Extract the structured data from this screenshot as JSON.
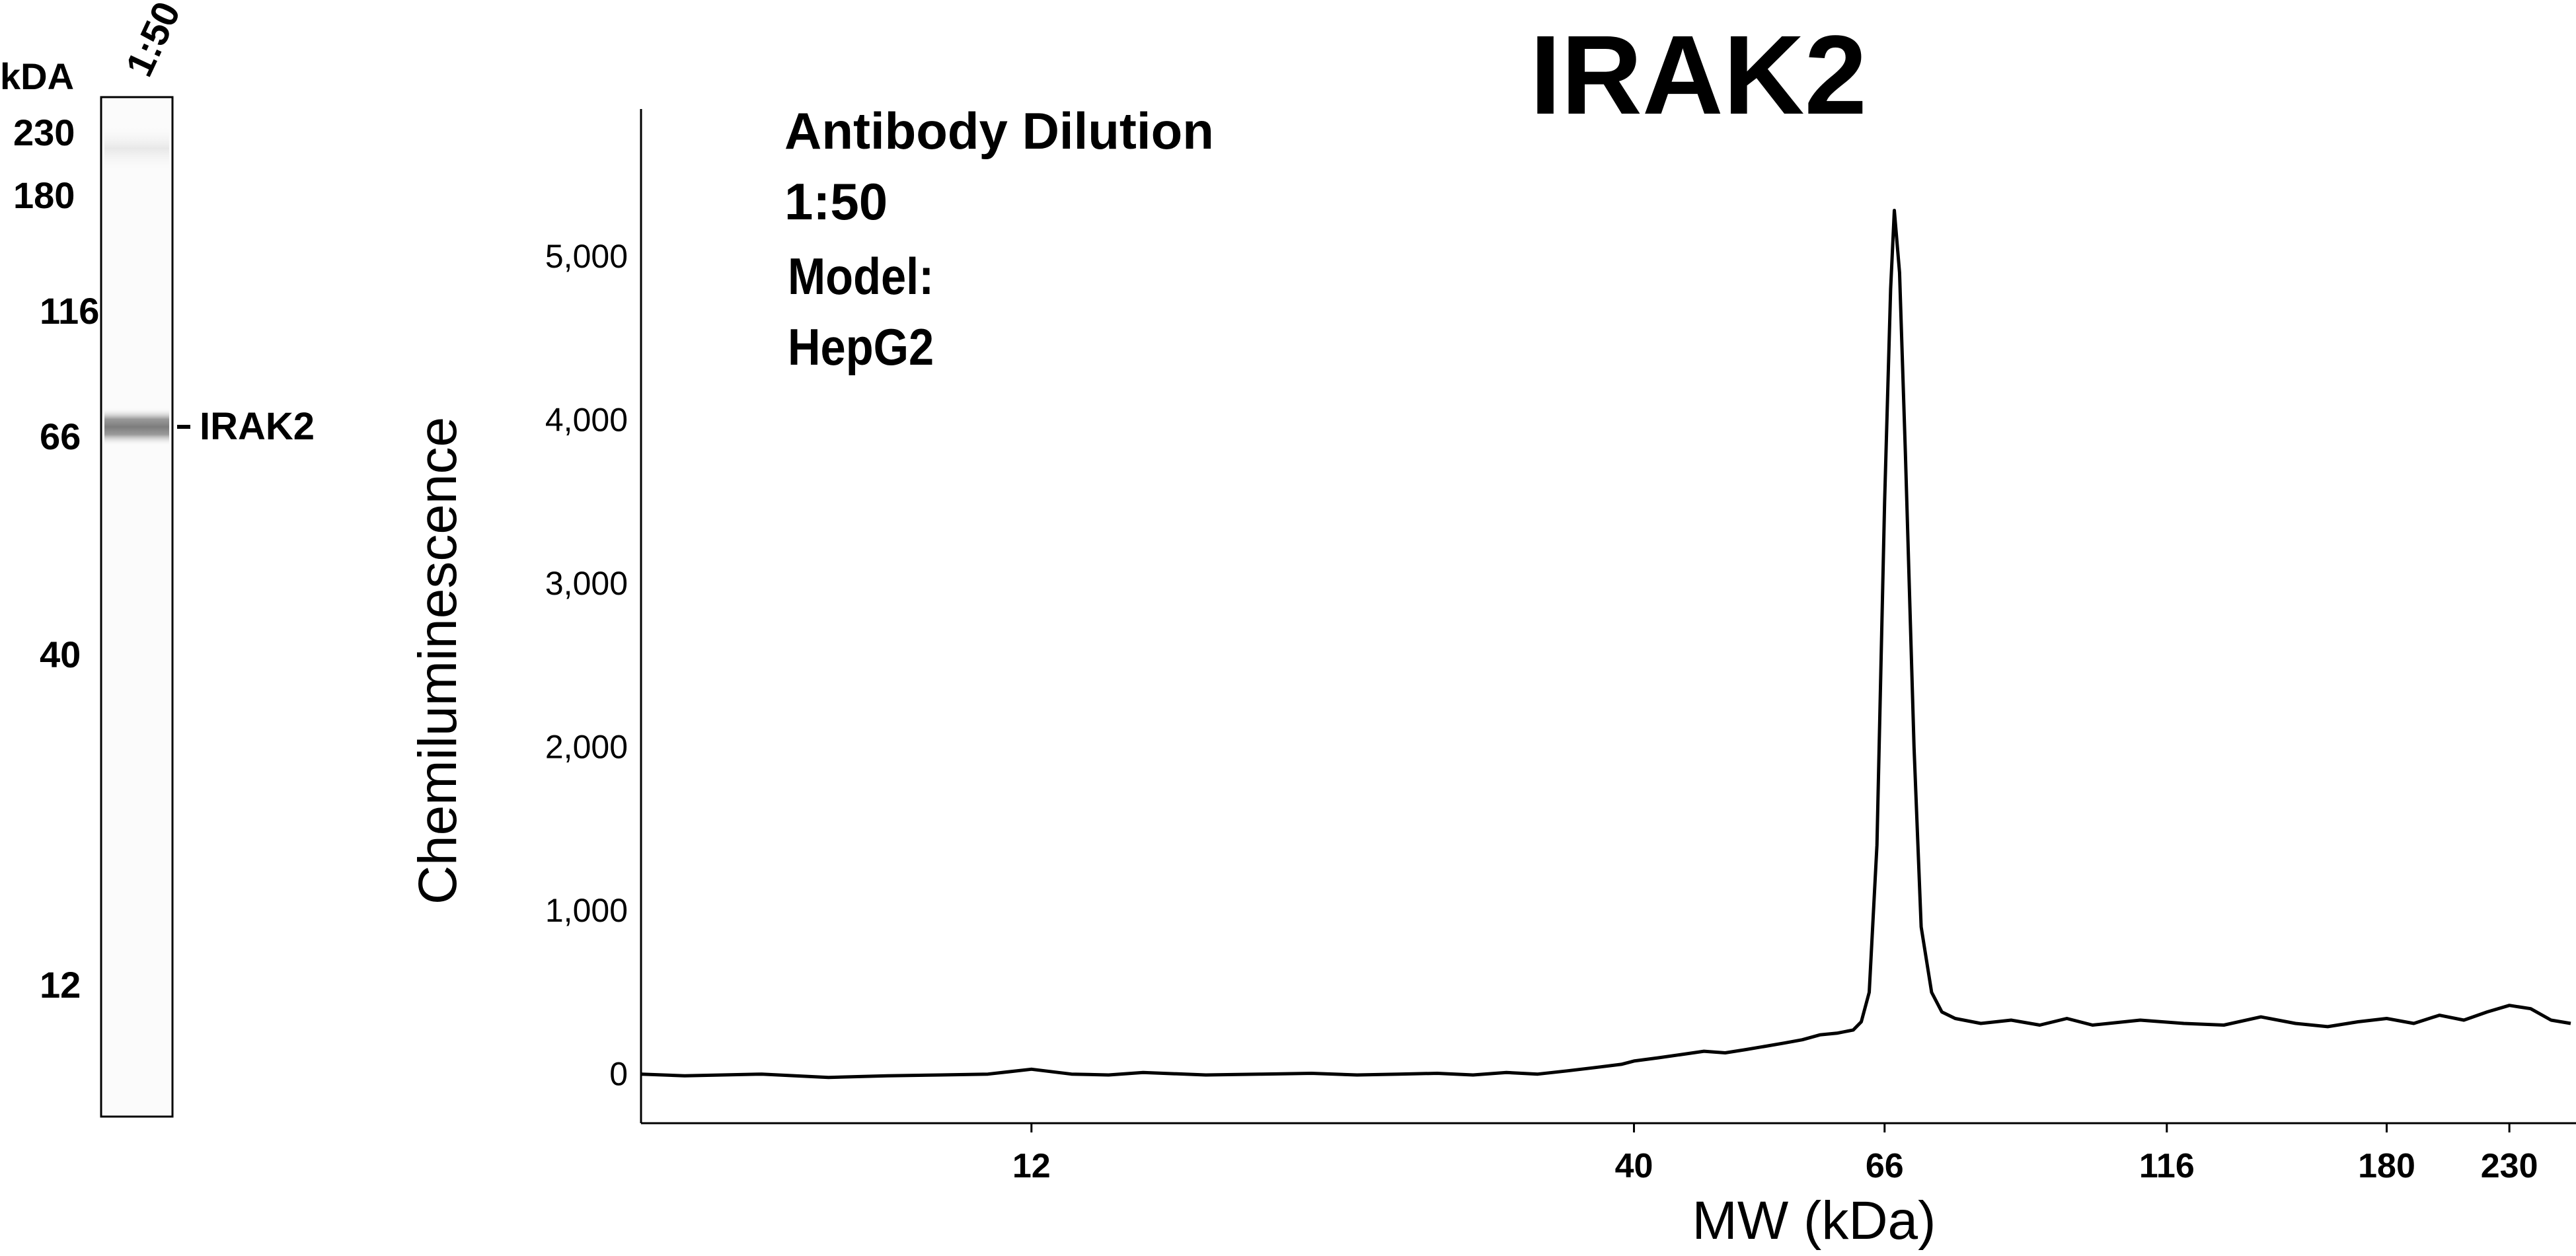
{
  "gel": {
    "unit_label": "kDA",
    "lane_label": "1:50",
    "band_label": "IRAK2",
    "markers": [
      "230",
      "180",
      "116",
      "66",
      "40",
      "12"
    ]
  },
  "annotation": {
    "line1": "Antibody Dilution",
    "line2": "1:50",
    "line3": "Model:",
    "line4": "HepG2"
  },
  "chart_data": {
    "type": "line",
    "title": "IRAK2",
    "xlabel": "MW (kDa)",
    "ylabel": "Chemiluminescence",
    "x_scale": "log",
    "xlim": [
      5.5,
      260
    ],
    "ylim": [
      -300,
      5900
    ],
    "x_ticks": [
      12,
      40,
      66,
      116,
      180,
      230
    ],
    "x_tick_labels": [
      "12",
      "40",
      "66",
      "116",
      "180",
      "230"
    ],
    "y_ticks": [
      0,
      1000,
      2000,
      3000,
      4000,
      5000
    ],
    "y_tick_labels": [
      "0",
      "1,000",
      "2,000",
      "3,000",
      "4,000",
      "5,000"
    ],
    "grid": false,
    "series": [
      {
        "color": "#000000",
        "points": [
          [
            5.5,
            0
          ],
          [
            6,
            -10
          ],
          [
            7,
            0
          ],
          [
            8,
            -20
          ],
          [
            9,
            -10
          ],
          [
            10,
            -5
          ],
          [
            11,
            0
          ],
          [
            12,
            30
          ],
          [
            13,
            0
          ],
          [
            14,
            -5
          ],
          [
            15,
            10
          ],
          [
            17,
            -5
          ],
          [
            19,
            0
          ],
          [
            21,
            5
          ],
          [
            23,
            -5
          ],
          [
            25,
            0
          ],
          [
            27,
            5
          ],
          [
            29,
            -5
          ],
          [
            31,
            10
          ],
          [
            33,
            0
          ],
          [
            35,
            20
          ],
          [
            37,
            40
          ],
          [
            39,
            60
          ],
          [
            40,
            80
          ],
          [
            42,
            100
          ],
          [
            44,
            120
          ],
          [
            46,
            140
          ],
          [
            48,
            130
          ],
          [
            50,
            150
          ],
          [
            52,
            170
          ],
          [
            54,
            190
          ],
          [
            56,
            210
          ],
          [
            58,
            240
          ],
          [
            60,
            250
          ],
          [
            62,
            270
          ],
          [
            63,
            320
          ],
          [
            64,
            500
          ],
          [
            65,
            1400
          ],
          [
            66,
            3500
          ],
          [
            66.8,
            4800
          ],
          [
            67.3,
            5280
          ],
          [
            68,
            4900
          ],
          [
            68.8,
            3800
          ],
          [
            70,
            2000
          ],
          [
            71,
            900
          ],
          [
            72.5,
            500
          ],
          [
            74,
            380
          ],
          [
            76,
            340
          ],
          [
            80,
            310
          ],
          [
            85,
            330
          ],
          [
            90,
            300
          ],
          [
            95,
            340
          ],
          [
            100,
            300
          ],
          [
            110,
            330
          ],
          [
            120,
            310
          ],
          [
            130,
            300
          ],
          [
            140,
            350
          ],
          [
            150,
            310
          ],
          [
            160,
            290
          ],
          [
            170,
            320
          ],
          [
            180,
            340
          ],
          [
            190,
            310
          ],
          [
            200,
            360
          ],
          [
            210,
            330
          ],
          [
            220,
            380
          ],
          [
            230,
            420
          ],
          [
            240,
            400
          ],
          [
            250,
            330
          ],
          [
            260,
            310
          ]
        ]
      }
    ]
  }
}
